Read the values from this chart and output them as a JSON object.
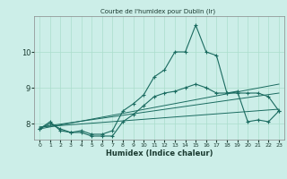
{
  "title": "Courbe de l'humidex pour Dublin (Ir)",
  "xlabel": "Humidex (Indice chaleur)",
  "bg_color": "#cceee8",
  "grid_color": "#aaddcc",
  "line_color": "#1a6b60",
  "x_ticks": [
    0,
    1,
    2,
    3,
    4,
    5,
    6,
    7,
    8,
    9,
    10,
    11,
    12,
    13,
    14,
    15,
    16,
    17,
    18,
    19,
    20,
    21,
    22,
    23
  ],
  "y_ticks": [
    8,
    9,
    10
  ],
  "xlim": [
    -0.5,
    23.5
  ],
  "ylim": [
    7.55,
    11.0
  ],
  "series1": [
    7.85,
    8.05,
    7.8,
    7.75,
    7.8,
    7.7,
    7.7,
    7.8,
    8.35,
    8.55,
    8.8,
    9.3,
    9.5,
    10.0,
    10.0,
    10.75,
    10.0,
    9.9,
    8.85,
    8.9,
    8.05,
    8.1,
    8.05,
    8.35
  ],
  "series2": [
    7.85,
    8.0,
    7.85,
    7.75,
    7.75,
    7.65,
    7.65,
    7.65,
    8.05,
    8.25,
    8.5,
    8.75,
    8.85,
    8.9,
    9.0,
    9.1,
    9.0,
    8.85,
    8.85,
    8.85,
    8.85,
    8.85,
    8.75,
    8.35
  ],
  "trend1_x": [
    0,
    23
  ],
  "trend1_y": [
    7.9,
    8.4
  ],
  "trend2_x": [
    0,
    23
  ],
  "trend2_y": [
    7.9,
    8.85
  ],
  "trend3_x": [
    0,
    23
  ],
  "trend3_y": [
    7.85,
    9.1
  ]
}
